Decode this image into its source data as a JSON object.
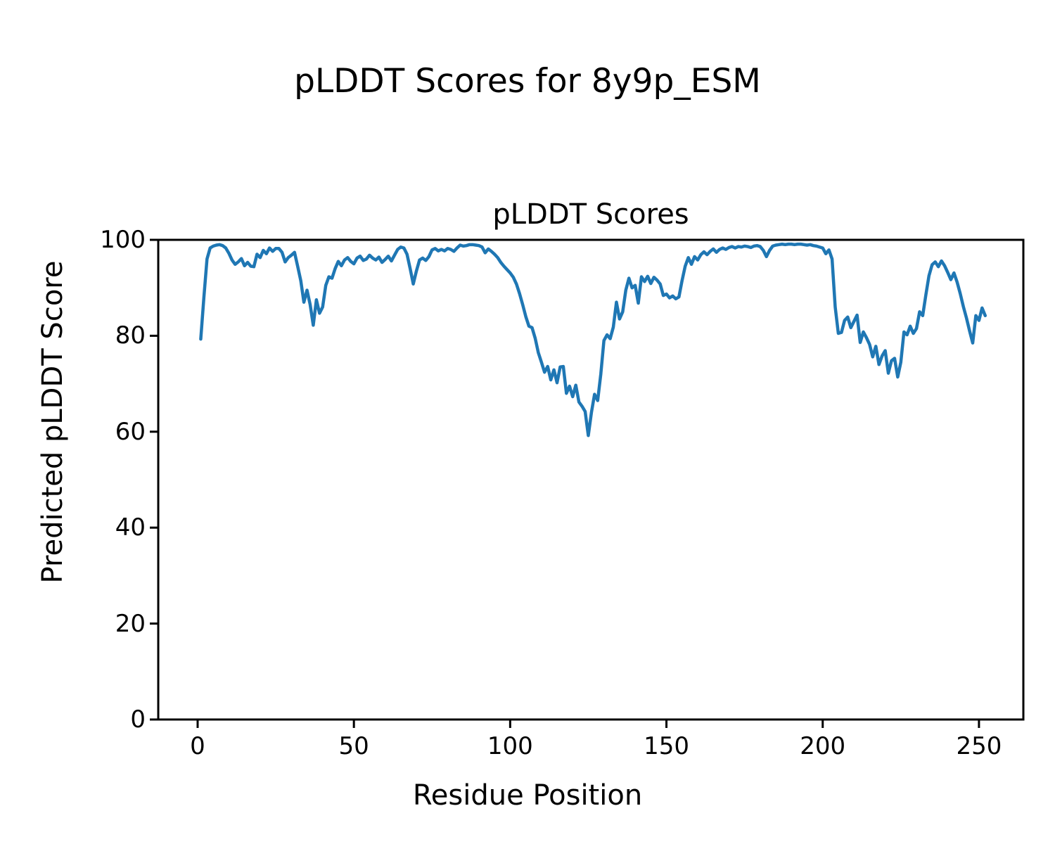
{
  "figure": {
    "suptitle": "pLDDT Scores for 8y9p_ESM",
    "background_color": "#ffffff",
    "text_color": "#000000"
  },
  "chart_data": {
    "type": "line",
    "title": "pLDDT Scores",
    "xlabel": "Residue Position",
    "ylabel": "Predicted pLDDT Score",
    "xticks": [
      0,
      50,
      100,
      150,
      200,
      250
    ],
    "yticks": [
      0,
      20,
      40,
      60,
      80,
      100
    ],
    "xlim": [
      -12.6,
      264.2
    ],
    "ylim": [
      0,
      100
    ],
    "grid": false,
    "legend": null,
    "line_color": "#1f77b4",
    "line_width": 4.5,
    "axis_color": "#000000",
    "series": [
      {
        "name": "pLDDT",
        "x_start": 1,
        "x_step": 1,
        "y": [
          79.3,
          88.0,
          96.0,
          98.3,
          98.7,
          98.9,
          99.0,
          98.8,
          98.3,
          97.2,
          95.8,
          94.9,
          95.4,
          96.1,
          94.6,
          95.3,
          94.5,
          94.4,
          97.0,
          96.3,
          97.8,
          97.1,
          98.3,
          97.6,
          98.2,
          98.2,
          97.4,
          95.4,
          96.3,
          96.8,
          97.4,
          94.5,
          91.5,
          87.0,
          89.5,
          86.5,
          82.2,
          87.5,
          84.7,
          86.0,
          90.5,
          92.3,
          92.0,
          94.0,
          95.5,
          94.6,
          95.8,
          96.3,
          95.5,
          95.0,
          96.2,
          96.6,
          95.7,
          96.0,
          96.8,
          96.2,
          95.8,
          96.4,
          95.3,
          95.9,
          96.6,
          95.6,
          96.8,
          98.0,
          98.5,
          98.3,
          97.0,
          94.0,
          90.8,
          93.5,
          95.8,
          96.2,
          95.7,
          96.5,
          97.9,
          98.2,
          97.7,
          98.0,
          97.7,
          98.2,
          98.0,
          97.6,
          98.3,
          98.9,
          98.7,
          98.8,
          99.0,
          99.0,
          98.9,
          98.8,
          98.5,
          97.3,
          98.1,
          97.6,
          97.0,
          96.3,
          95.3,
          94.5,
          93.8,
          93.1,
          92.2,
          90.8,
          88.8,
          86.5,
          84.0,
          82.0,
          81.7,
          79.5,
          76.5,
          74.5,
          72.4,
          73.6,
          70.8,
          72.9,
          70.2,
          73.5,
          73.6,
          68.0,
          69.5,
          67.3,
          69.7,
          66.2,
          65.3,
          64.2,
          59.2,
          64.0,
          67.8,
          66.5,
          72.0,
          79.0,
          80.2,
          79.4,
          81.8,
          87.0,
          83.5,
          85.0,
          89.5,
          92.0,
          90.0,
          90.5,
          86.8,
          92.3,
          91.3,
          92.4,
          90.9,
          92.2,
          91.6,
          90.8,
          88.4,
          88.7,
          87.9,
          88.3,
          87.7,
          88.1,
          91.5,
          94.5,
          96.3,
          94.9,
          96.5,
          95.8,
          96.9,
          97.5,
          96.9,
          97.6,
          98.1,
          97.4,
          98.0,
          98.3,
          98.0,
          98.4,
          98.6,
          98.3,
          98.6,
          98.5,
          98.7,
          98.6,
          98.4,
          98.7,
          98.8,
          98.6,
          97.8,
          96.5,
          97.8,
          98.7,
          98.9,
          99.0,
          99.1,
          99.0,
          99.1,
          99.1,
          99.0,
          99.1,
          99.1,
          99.0,
          98.9,
          99.0,
          98.8,
          98.7,
          98.5,
          98.3,
          97.1,
          97.9,
          96.0,
          86.0,
          80.5,
          80.7,
          83.2,
          83.9,
          81.7,
          83.0,
          84.3,
          78.6,
          80.8,
          79.6,
          78.2,
          75.6,
          77.8,
          74.0,
          75.8,
          76.9,
          72.2,
          74.8,
          75.3,
          71.4,
          74.5,
          80.8,
          80.2,
          82.0,
          80.5,
          81.5,
          85.0,
          84.2,
          88.5,
          92.5,
          94.8,
          95.4,
          94.4,
          95.6,
          94.6,
          93.2,
          91.7,
          93.1,
          91.2,
          88.8,
          86.1,
          83.7,
          81.0,
          78.5,
          84.2,
          83.2,
          85.8,
          84.2
        ]
      }
    ]
  }
}
